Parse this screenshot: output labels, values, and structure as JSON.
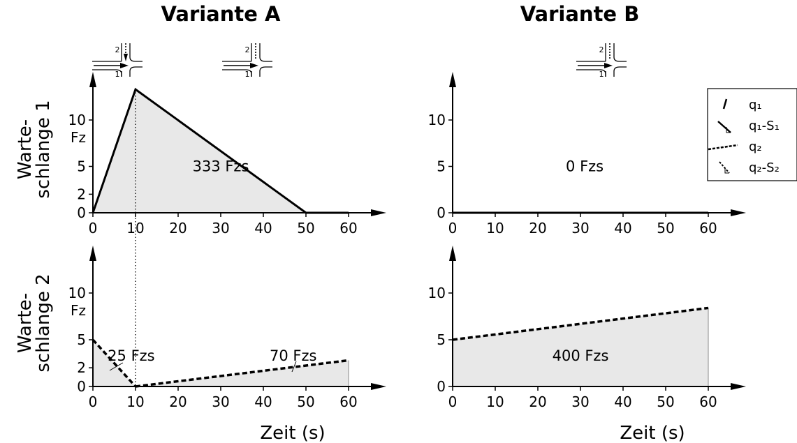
{
  "chart_data": [
    {
      "type": "area",
      "variant": "Variante A",
      "queue": "Warteschlange 1",
      "ylabel": "Warte-\nschlange 1",
      "unit": "Fz",
      "x_ticks": [
        0,
        10,
        20,
        30,
        40,
        50,
        60
      ],
      "y_ticks": [
        0,
        2,
        5,
        10
      ],
      "xlim": [
        0,
        60
      ],
      "ylim": [
        0,
        14
      ],
      "series": [
        {
          "style": "solid",
          "x": [
            0,
            10,
            50,
            60
          ],
          "y": [
            0,
            13.3,
            0,
            0
          ],
          "shaded_until_x": 50
        }
      ],
      "annotations": [
        {
          "text": "333 Fzs",
          "x": 30,
          "y": 5
        }
      ]
    },
    {
      "type": "area",
      "variant": "Variante B",
      "queue": "Warteschlange 1",
      "unit": "",
      "x_ticks": [
        0,
        10,
        20,
        30,
        40,
        50,
        60
      ],
      "y_ticks": [
        0,
        5,
        10
      ],
      "xlim": [
        0,
        60
      ],
      "ylim": [
        0,
        14
      ],
      "series": [
        {
          "style": "solid",
          "x": [
            0,
            60
          ],
          "y": [
            0,
            0
          ]
        }
      ],
      "annotations": [
        {
          "text": "0 Fzs",
          "x": 31,
          "y": 5
        }
      ]
    },
    {
      "type": "area",
      "variant": "Variante A",
      "queue": "Warteschlange 2",
      "ylabel": "Warte-\nschlange 2",
      "unit": "Fz",
      "xlabel": "Zeit (s)",
      "x_ticks": [
        0,
        10,
        20,
        30,
        40,
        50,
        60
      ],
      "y_ticks": [
        0,
        2,
        5,
        10
      ],
      "xlim": [
        0,
        60
      ],
      "ylim": [
        0,
        14
      ],
      "series": [
        {
          "style": "dashed",
          "x": [
            0,
            10
          ],
          "y": [
            5,
            0
          ],
          "shaded": true
        },
        {
          "style": "dashed",
          "x": [
            10,
            60
          ],
          "y": [
            0,
            2.8
          ],
          "shaded": true
        }
      ],
      "annotations": [
        {
          "text": "25 Fzs",
          "x": 9,
          "y": 3.3
        },
        {
          "text": "70 Fzs",
          "x": 47,
          "y": 3.3
        }
      ]
    },
    {
      "type": "area",
      "variant": "Variante B",
      "queue": "Warteschlange 2",
      "unit": "",
      "xlabel": "Zeit (s)",
      "x_ticks": [
        0,
        10,
        20,
        30,
        40,
        50,
        60
      ],
      "y_ticks": [
        0,
        5,
        10
      ],
      "xlim": [
        0,
        60
      ],
      "ylim": [
        0,
        14
      ],
      "series": [
        {
          "style": "dashed",
          "x": [
            0,
            60
          ],
          "y": [
            5,
            8.4
          ],
          "shaded": true
        }
      ],
      "annotations": [
        {
          "text": "400 Fzs",
          "x": 30,
          "y": 3.3
        }
      ]
    }
  ],
  "titles": {
    "a": "Variante A",
    "b": "Variante B"
  },
  "legend": {
    "items": [
      {
        "label": "q₁"
      },
      {
        "label": "q₁-S₁"
      },
      {
        "label": "q₂"
      },
      {
        "label": "q₂-S₂"
      }
    ]
  },
  "intersection_labels": {
    "lane1": "1",
    "lane2": "2"
  },
  "colors": {
    "fill": "#e8e8e8",
    "line": "#000000"
  }
}
